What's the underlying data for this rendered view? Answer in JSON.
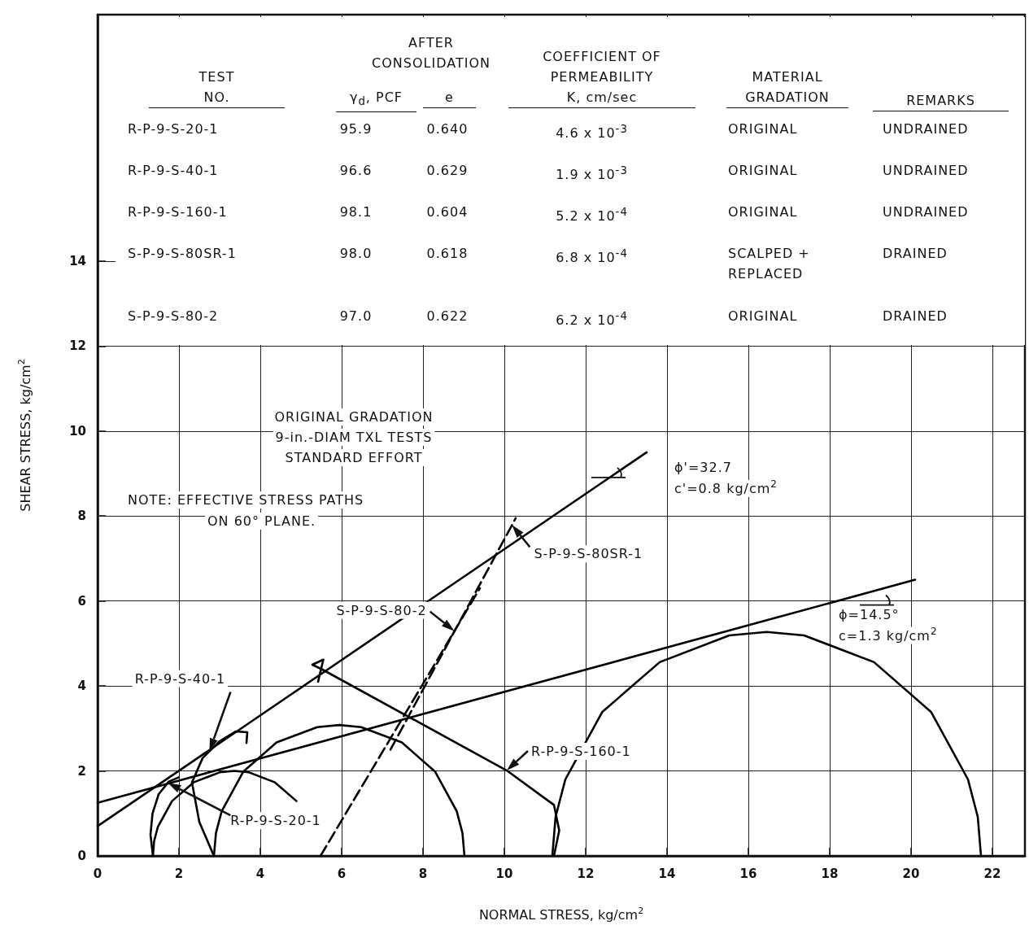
{
  "chart_data": {
    "type": "line",
    "xlabel": "NORMAL STRESS, kg/cm$^{2}$",
    "ylabel": "SHEAR STRESS, kg/cm$^{2}$",
    "xlim": [
      0,
      22.8
    ],
    "xticks": [
      0,
      2,
      4,
      6,
      8,
      10,
      12,
      14,
      16,
      18,
      20,
      22
    ],
    "ylim": [
      0,
      19.8
    ],
    "yticks": [
      0,
      2,
      4,
      6,
      8,
      10,
      12,
      14
    ],
    "grid": true,
    "marker": "none",
    "series": [
      {
        "color": "#000000",
        "line_style": "solid",
        "x": [
          0,
          13.5
        ],
        "values": [
          0.7,
          9.5
        ]
      },
      {
        "color": "#000000",
        "line_style": "solid",
        "x": [
          0,
          20.1
        ],
        "values": [
          1.25,
          6.5
        ]
      },
      {
        "color": "#000000",
        "line_style": "solid",
        "x": [
          1.36,
          1.39,
          1.48,
          1.83,
          2.36,
          3.01,
          3.36,
          3.71,
          4.36,
          4.89
        ],
        "values": [
          0,
          0.35,
          0.68,
          1.29,
          1.73,
          1.97,
          2.0,
          1.97,
          1.73,
          1.29
        ]
      },
      {
        "color": "#000000",
        "line_style": "solid",
        "x": [
          2.86,
          2.91,
          3.05,
          3.58,
          4.4,
          5.4,
          5.94,
          6.48,
          7.48,
          8.3,
          8.83,
          8.97,
          9.02
        ],
        "values": [
          0,
          0.54,
          1.05,
          1.98,
          2.67,
          3.03,
          3.08,
          3.03,
          2.67,
          1.98,
          1.05,
          0.54,
          0
        ]
      },
      {
        "color": "#000000",
        "line_style": "solid",
        "x": [
          11.18,
          11.26,
          11.5,
          12.41,
          13.82,
          15.53,
          16.45,
          17.37,
          19.09,
          20.49,
          21.4,
          21.64,
          21.72
        ],
        "values": [
          0,
          0.92,
          1.8,
          3.39,
          4.56,
          5.19,
          5.27,
          5.19,
          4.56,
          3.39,
          1.8,
          0.92,
          0
        ]
      },
      {
        "name": "R-P-9-S-20-1",
        "color": "#000000",
        "line_style": "solid",
        "x": [
          1.36,
          1.3,
          1.35,
          1.5,
          1.75,
          2.0
        ],
        "values": [
          0,
          0.5,
          1.0,
          1.45,
          1.75,
          1.85
        ]
      },
      {
        "name": "R-P-9-S-40-1",
        "color": "#000000",
        "line_style": "solid",
        "x": [
          2.86,
          2.5,
          2.32,
          2.58,
          3.0,
          3.4,
          3.68,
          3.66
        ],
        "values": [
          0,
          0.8,
          1.73,
          2.3,
          2.7,
          2.93,
          2.91,
          2.66
        ]
      },
      {
        "name": "R-P-9-S-160-1",
        "color": "#000000",
        "line_style": "solid",
        "x": [
          11.22,
          11.35,
          11.22,
          10.06,
          5.52,
          5.28,
          5.55,
          5.42
        ],
        "values": [
          0,
          0.6,
          1.2,
          2.01,
          4.39,
          4.5,
          4.62,
          4.1
        ]
      },
      {
        "name": "S-P-9-S-80-2",
        "color": "#000000",
        "line_style": "dashed",
        "x": [
          5.48,
          9.4
        ],
        "values": [
          0,
          6.3
        ]
      },
      {
        "name": "S-P-9-S-80SR-1",
        "color": "#000000",
        "line_style": "dashed",
        "x": [
          7.2,
          10.28
        ],
        "values": [
          2.5,
          7.95
        ]
      }
    ],
    "annotations": [
      "ORIGINAL GRADATION\n9-in.-DIAM TXL TESTS\nSTANDARD EFFORT",
      "NOTE:  EFFECTIVE STRESS PATHS\nON 60° PLANE.",
      {
        "text": "ϕ'=32.7\nc'=0.8 kg/cm$^{2}$",
        "x": 13.5,
        "y": 9.5
      },
      {
        "text": "ϕ=14.5°\nc=1.3 kg/cm$^{2}$",
        "x": 20.1,
        "y": 6.5
      },
      "TEST\nNO.",
      "AFTER\nCONSOLIDATION",
      "γ$_{d}$, PCF",
      "e",
      "COEFFICIENT OF\nPERMEABILITY\nK, cm/sec",
      "MATERIAL\nGRADATION",
      "REMARKS",
      "R-P-9-S-20-1",
      "95.9",
      "0.640",
      "4.6 x 10$^{-3}$",
      "ORIGINAL",
      "UNDRAINED",
      "R-P-9-S-40-1",
      "96.6",
      "0.629",
      "1.9 x 10$^{-3}$",
      "ORIGINAL",
      "UNDRAINED",
      "R-P-9-S-160-1",
      "98.1",
      "0.604",
      "5.2 x 10$^{-4}$",
      "ORIGINAL",
      "UNDRAINED",
      "S-P-9-S-80SR-1",
      "98.0",
      "0.618",
      "6.8 x 10$^{-4}$",
      "SCALPED +\nREPLACED",
      "DRAINED",
      "S-P-9-S-80-2",
      "97.0",
      "0.622",
      "6.2 x 10$^{-4}$",
      "ORIGINAL",
      "DRAINED"
    ]
  }
}
